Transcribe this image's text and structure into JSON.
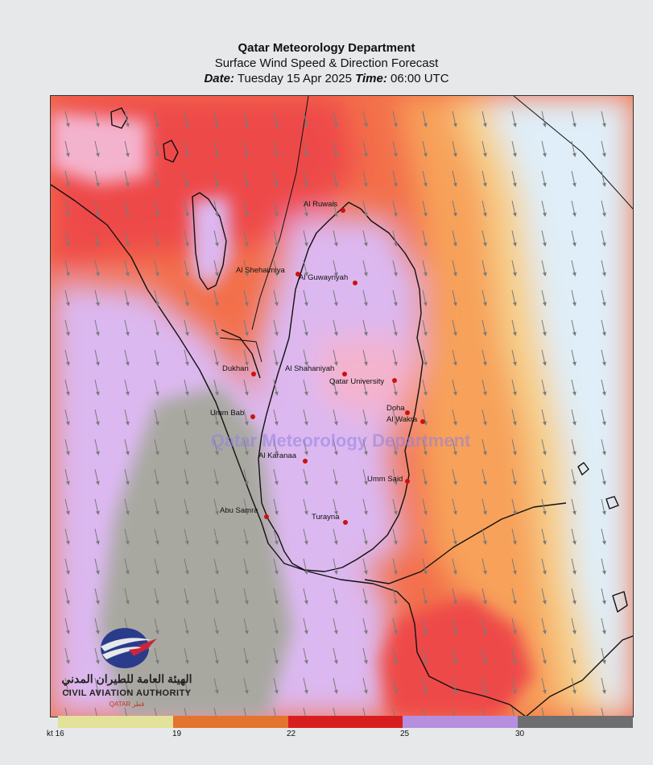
{
  "header": {
    "title": "Qatar Meteorology Department",
    "subtitle": "Surface Wind Speed & Direction Forecast",
    "date_label": "Date:",
    "date_value": "Tuesday 15 Apr 2025",
    "time_label": "Time:",
    "time_value": "06:00 UTC"
  },
  "map": {
    "watermark": "Qatar Meteorology Department",
    "cities": [
      {
        "name": "Al Ruwais"
      },
      {
        "name": "Al Shehaimiya"
      },
      {
        "name": "Al Guwayriyah"
      },
      {
        "name": "Dukhan"
      },
      {
        "name": "Al Shahaniyah"
      },
      {
        "name": "Qatar University"
      },
      {
        "name": "Doha"
      },
      {
        "name": "Al Wakra"
      },
      {
        "name": "Umm Bab"
      },
      {
        "name": "Al Karanaa"
      },
      {
        "name": "Umm Said"
      },
      {
        "name": "Abu Samra"
      },
      {
        "name": "Turayna"
      }
    ],
    "wind_direction": "from north-northwest",
    "colors": {
      "strongest": "#ee4a4a",
      "strong": "#f36f4a",
      "moderate": "#f7a15a",
      "light": "#f6d08a",
      "calm_sea": "#dfeef8",
      "pink": "#f4b3cd",
      "lilac": "#dcb8f0",
      "grey": "#a8a8a0",
      "city_dot": "#cc1111",
      "arrow": "#7a7a7a"
    }
  },
  "logo": {
    "arabic_text": "الهيئة العامة للطيران المدني",
    "english_text": "CIVIL AVIATION AUTHORITY",
    "country_text": "QATAR قطر"
  },
  "legend": {
    "unit": "kt",
    "labels": [
      "16",
      "19",
      "22",
      "25",
      "30"
    ],
    "colors": [
      "#e3e29a",
      "#e27430",
      "#d81d1d",
      "#b68ee0",
      "#6e6e6e"
    ]
  }
}
